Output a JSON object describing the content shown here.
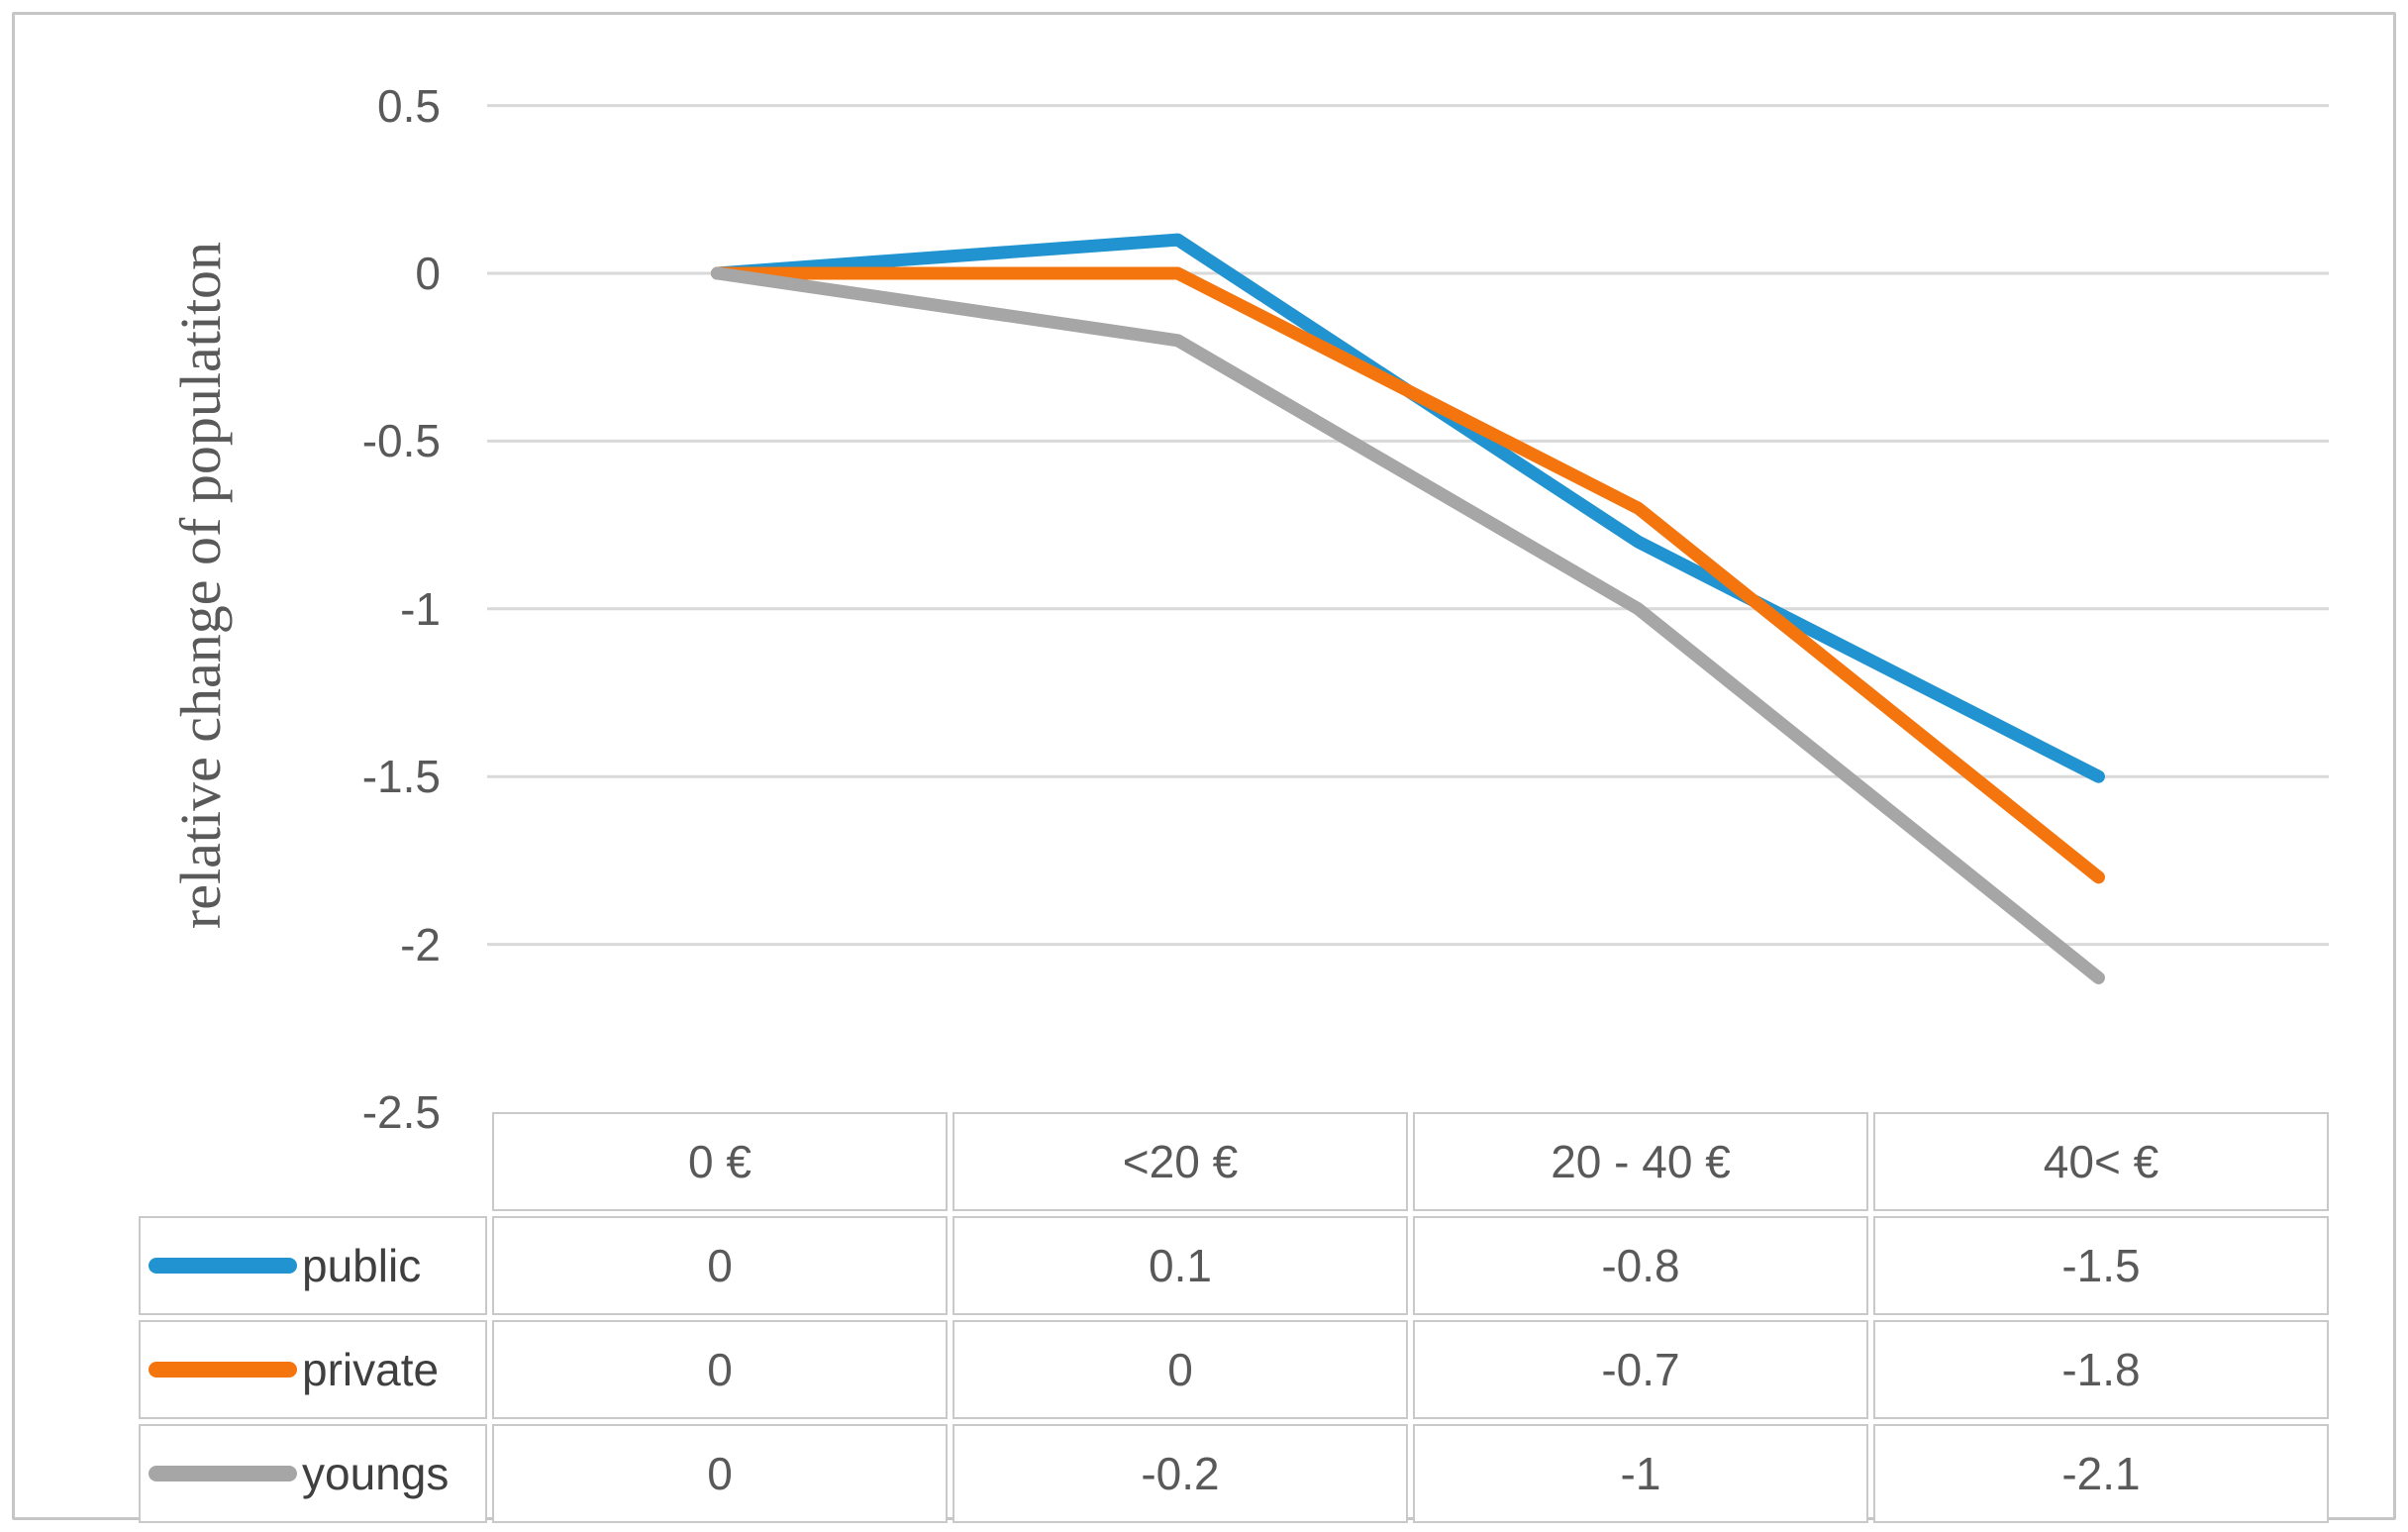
{
  "chart_data": {
    "type": "line",
    "title": "",
    "xlabel": "",
    "ylabel": "relative change of populatiton",
    "categories": [
      "0 €",
      "<20 €",
      "20 - 40 €",
      "40< €"
    ],
    "series": [
      {
        "name": "public",
        "color": "#2193d0",
        "values": [
          0,
          0.1,
          -0.8,
          -1.5
        ]
      },
      {
        "name": "private",
        "color": "#f4750e",
        "values": [
          0,
          0,
          -0.7,
          -1.8
        ]
      },
      {
        "name": "youngs",
        "color": "#a6a6a6",
        "values": [
          0,
          -0.2,
          -1,
          -2.1
        ]
      }
    ],
    "ylim": [
      -2.5,
      0.5
    ],
    "yticks": [
      0.5,
      0,
      -0.5,
      -1,
      -1.5,
      -2,
      -2.5
    ],
    "grid": true,
    "gridline_color": "#d9d9d9",
    "axis_text_color": "#595959",
    "legend_position": "data-table-left"
  }
}
